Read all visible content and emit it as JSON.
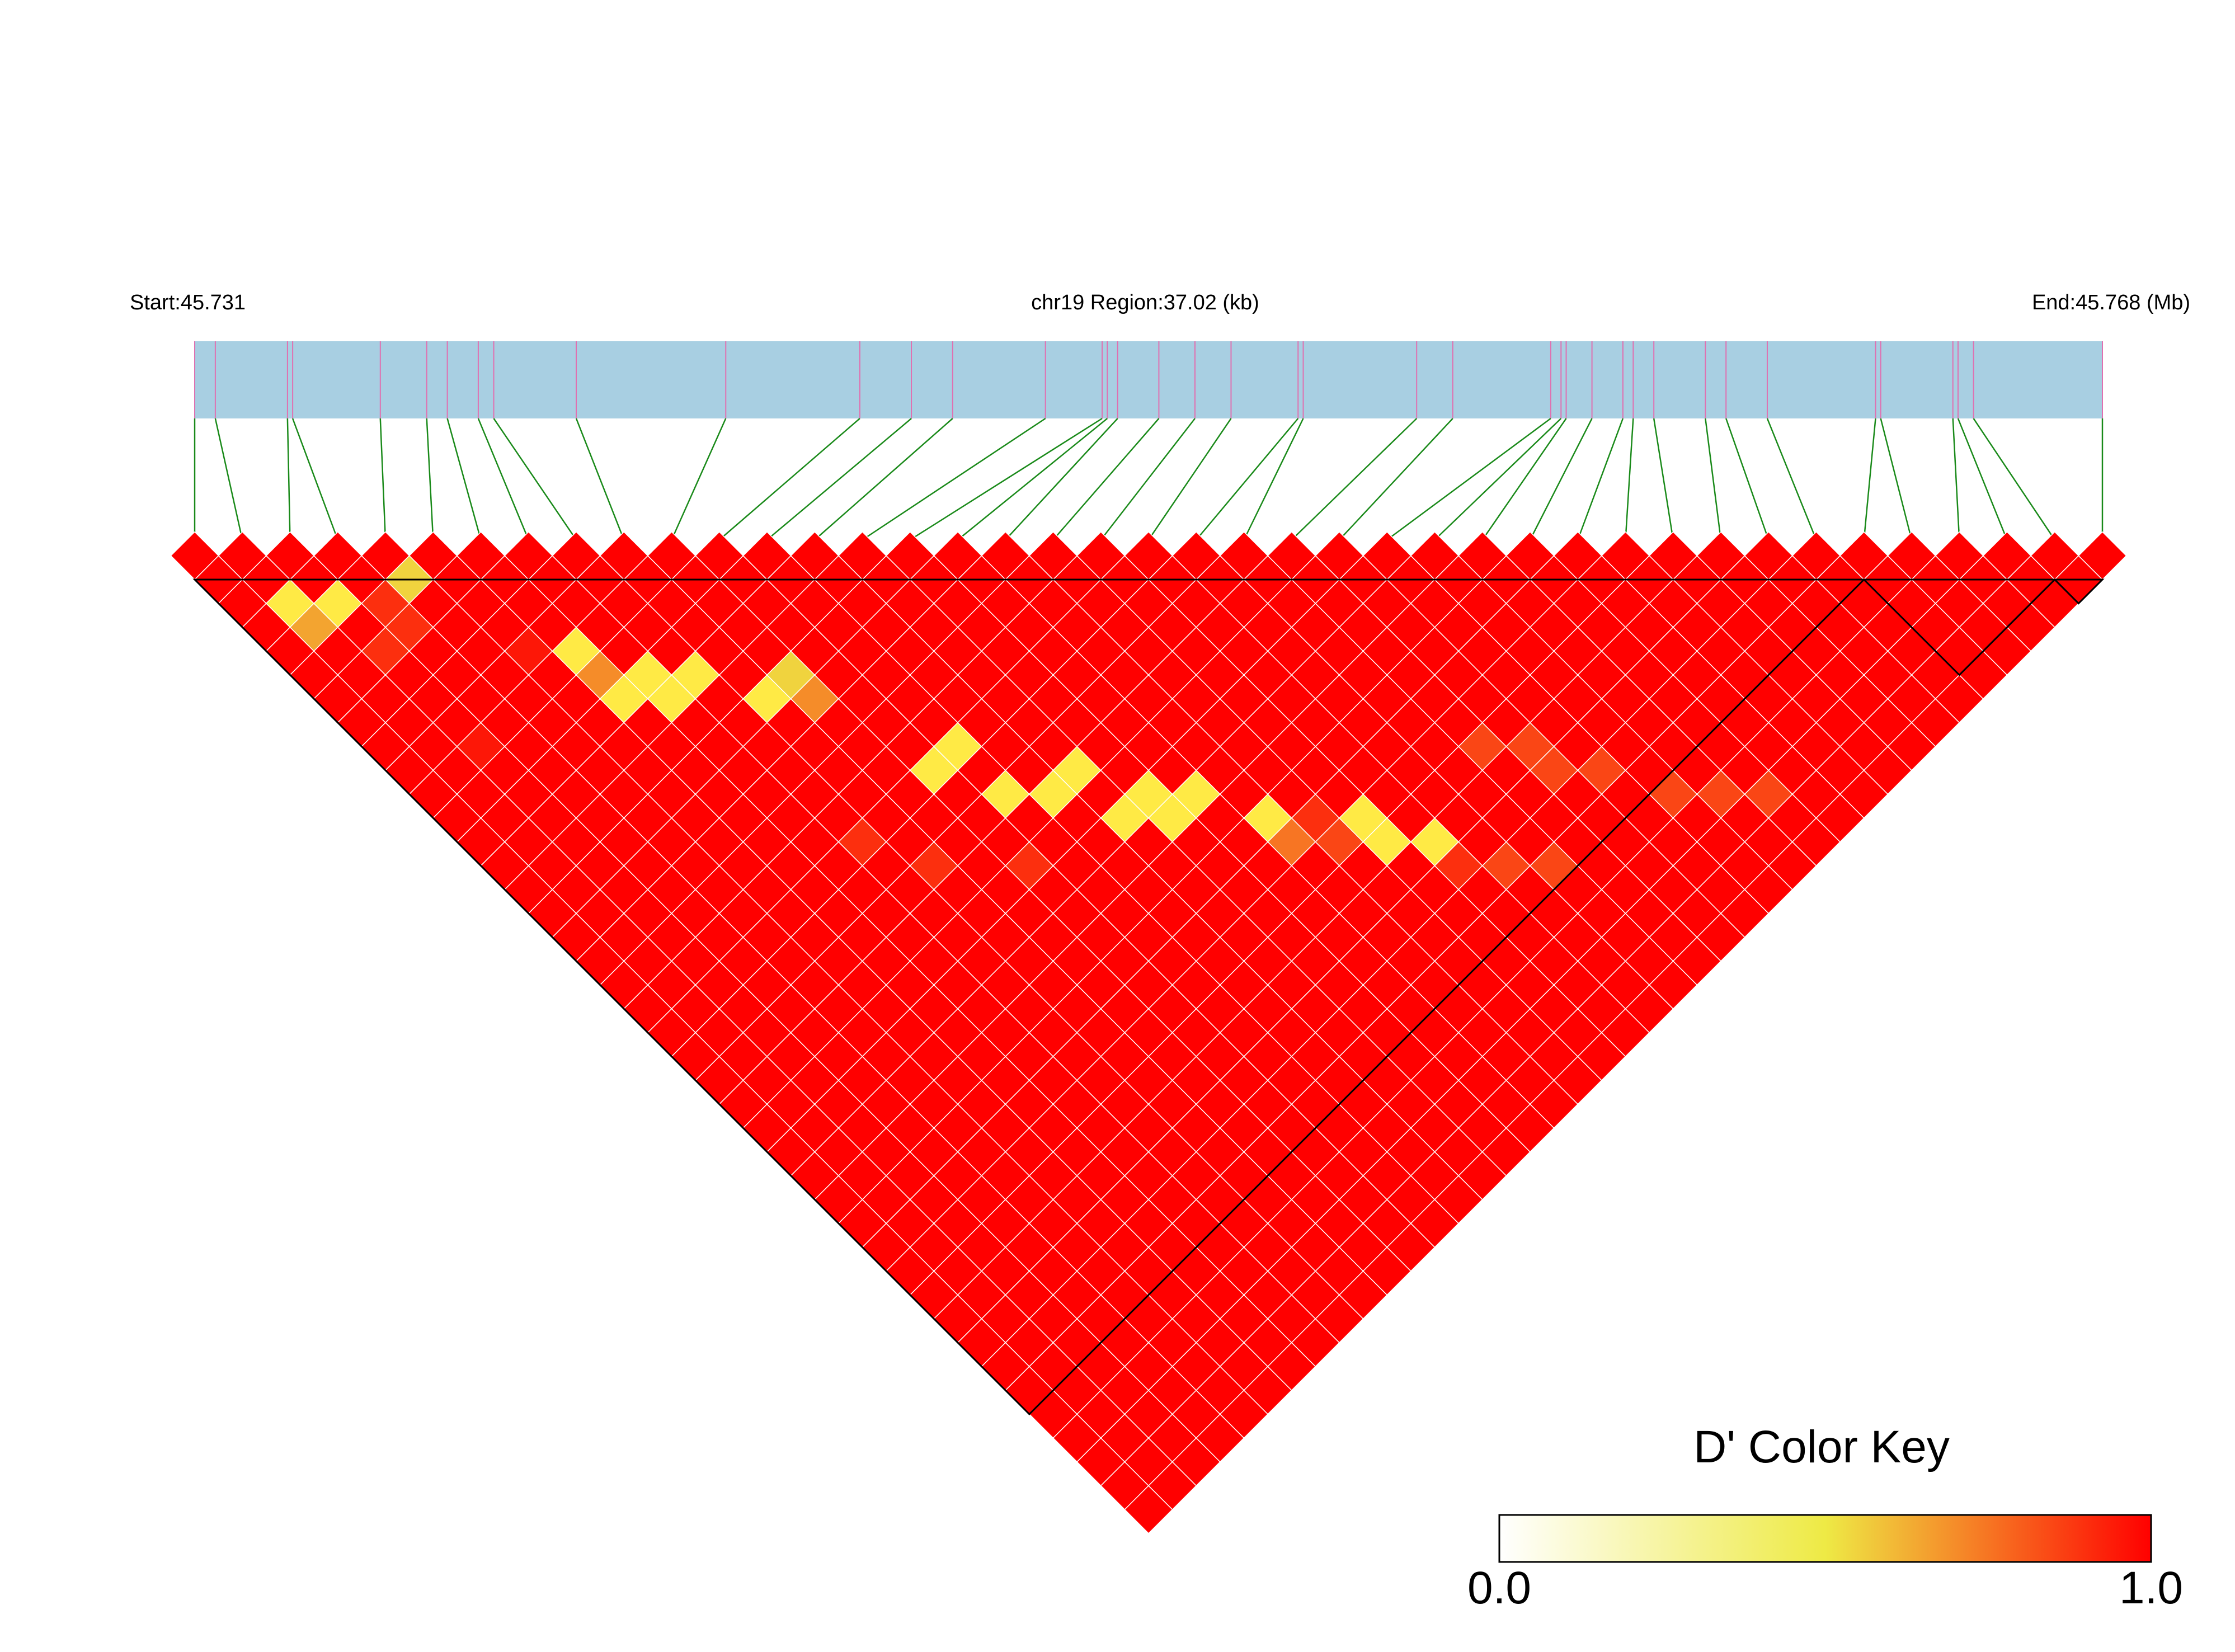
{
  "header": {
    "start_label": "Start:45.731",
    "region_label": "chr19 Region:37.02 (kb)",
    "end_label": "End:45.768 (Mb)"
  },
  "legend": {
    "title": "D' Color Key",
    "min_label": "0.0",
    "max_label": "1.0",
    "colors": {
      "low": "#ffffff",
      "mid": "#eeea45",
      "high": "#ff0000"
    }
  },
  "colors": {
    "track_fill": "#a8cfe2",
    "snp_tick": "#e070b0",
    "connector": "#1a8a1a",
    "cell_grid": "#ffffff",
    "block_outline": "#000000"
  },
  "chart_data": {
    "type": "heatmap",
    "subtype": "LD triangle (D')",
    "chromosome": "chr19",
    "region_start_mb": 45.731,
    "region_end_mb": 45.768,
    "region_length_kb": 37.02,
    "snp_count": 41,
    "snp_positions_mb": [
      45.731,
      45.7314,
      45.7328,
      45.7329,
      45.7346,
      45.7355,
      45.7359,
      45.7365,
      45.7368,
      45.7384,
      45.7413,
      45.7439,
      45.7449,
      45.7457,
      45.7475,
      45.7486,
      45.7487,
      45.7489,
      45.7497,
      45.7504,
      45.7511,
      45.7524,
      45.7525,
      45.7547,
      45.7554,
      45.7573,
      45.7575,
      45.7576,
      45.7581,
      45.7587,
      45.7589,
      45.7593,
      45.7603,
      45.7607,
      45.7615,
      45.7636,
      45.7637,
      45.7651,
      45.7652,
      45.7655,
      45.768
    ],
    "default_dprime": 1.0,
    "dprime_exceptions": [
      {
        "i": 1,
        "j": 3,
        "d": 0.5
      },
      {
        "i": 2,
        "j": 4,
        "d": 0.5
      },
      {
        "i": 1,
        "j": 4,
        "d": 0.65
      },
      {
        "i": 4,
        "j": 5,
        "d": 0.55
      },
      {
        "i": 3,
        "j": 5,
        "d": 0.9
      },
      {
        "i": 3,
        "j": 6,
        "d": 0.9
      },
      {
        "i": 2,
        "j": 6,
        "d": 0.9
      },
      {
        "i": 6,
        "j": 10,
        "d": 0.5
      },
      {
        "i": 6,
        "j": 11,
        "d": 0.7
      },
      {
        "i": 6,
        "j": 12,
        "d": 0.5
      },
      {
        "i": 7,
        "j": 12,
        "d": 0.5
      },
      {
        "i": 7,
        "j": 13,
        "d": 0.5
      },
      {
        "i": 8,
        "j": 13,
        "d": 0.5
      },
      {
        "i": 9,
        "j": 15,
        "d": 0.5
      },
      {
        "i": 10,
        "j": 15,
        "d": 0.55
      },
      {
        "i": 10,
        "j": 16,
        "d": 0.7
      },
      {
        "i": 11,
        "j": 20,
        "d": 0.5
      },
      {
        "i": 12,
        "j": 20,
        "d": 0.5
      },
      {
        "i": 12,
        "j": 22,
        "d": 0.5
      },
      {
        "i": 13,
        "j": 23,
        "d": 0.5
      },
      {
        "i": 14,
        "j": 23,
        "d": 0.5
      },
      {
        "i": 14,
        "j": 25,
        "d": 0.5
      },
      {
        "i": 15,
        "j": 25,
        "d": 0.5
      },
      {
        "i": 15,
        "j": 26,
        "d": 0.5
      },
      {
        "i": 16,
        "j": 26,
        "d": 0.5
      },
      {
        "i": 17,
        "j": 28,
        "d": 0.5
      },
      {
        "i": 17,
        "j": 29,
        "d": 0.75
      },
      {
        "i": 18,
        "j": 29,
        "d": 0.9
      },
      {
        "i": 19,
        "j": 30,
        "d": 0.5
      },
      {
        "i": 19,
        "j": 31,
        "d": 0.5
      },
      {
        "i": 20,
        "j": 32,
        "d": 0.5
      },
      {
        "i": 23,
        "j": 31,
        "d": 0.85
      },
      {
        "i": 24,
        "j": 32,
        "d": 0.85
      },
      {
        "i": 24,
        "j": 33,
        "d": 0.85
      },
      {
        "i": 25,
        "j": 34,
        "d": 0.85
      },
      {
        "i": 26,
        "j": 36,
        "d": 0.85
      },
      {
        "i": 27,
        "j": 37,
        "d": 0.85
      },
      {
        "i": 28,
        "j": 38,
        "d": 0.85
      },
      {
        "i": 22,
        "j": 35,
        "d": 0.85
      },
      {
        "i": 21,
        "j": 34,
        "d": 0.85
      },
      {
        "i": 18,
        "j": 30,
        "d": 0.85
      },
      {
        "i": 20,
        "j": 33,
        "d": 0.9
      },
      {
        "i": 8,
        "j": 20,
        "d": 0.9
      },
      {
        "i": 9,
        "j": 22,
        "d": 0.9
      },
      {
        "i": 11,
        "j": 24,
        "d": 0.9
      },
      {
        "i": 5,
        "j": 9,
        "d": 0.95
      },
      {
        "i": 2,
        "j": 10,
        "d": 0.95
      }
    ],
    "haplotype_blocks": [
      [
        0,
        35
      ],
      [
        35,
        39
      ],
      [
        39,
        40
      ]
    ]
  }
}
